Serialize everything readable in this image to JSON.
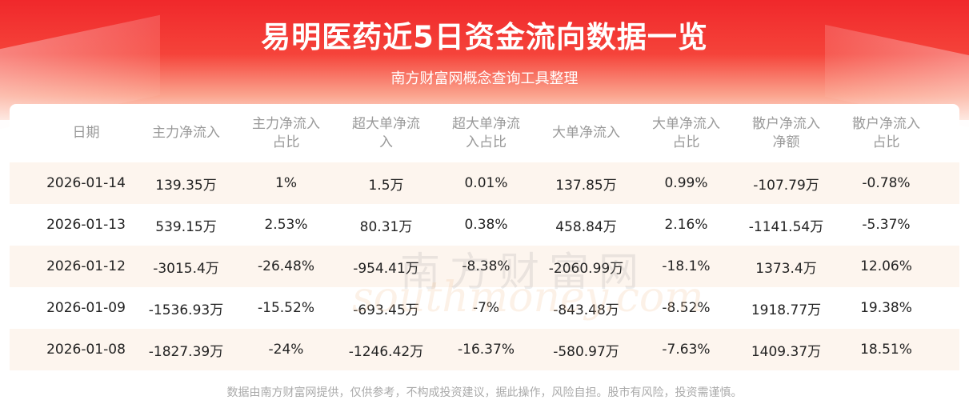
{
  "header": {
    "title": "易明医药近5日资金流向数据一览",
    "subtitle": "南方财富网概念查询工具整理"
  },
  "table": {
    "columns": [
      "日期",
      "主力净流入",
      "主力净流入\n占比",
      "超大单净流\n入",
      "超大单净流\n入占比",
      "大单净流入",
      "大单净流入\n占比",
      "散户净流入\n净额",
      "散户净流入\n占比"
    ],
    "rows": [
      [
        "2026-01-14",
        "139.35万",
        "1%",
        "1.5万",
        "0.01%",
        "137.85万",
        "0.99%",
        "-107.79万",
        "-0.78%"
      ],
      [
        "2026-01-13",
        "539.15万",
        "2.53%",
        "80.31万",
        "0.38%",
        "458.84万",
        "2.16%",
        "-1141.54万",
        "-5.37%"
      ],
      [
        "2026-01-12",
        "-3015.4万",
        "-26.48%",
        "-954.41万",
        "-8.38%",
        "-2060.99万",
        "-18.1%",
        "1373.4万",
        "12.06%"
      ],
      [
        "2026-01-09",
        "-1536.93万",
        "-15.52%",
        "-693.45万",
        "-7%",
        "-843.48万",
        "-8.52%",
        "1918.77万",
        "19.38%"
      ],
      [
        "2026-01-08",
        "-1827.39万",
        "-24%",
        "-1246.42万",
        "-16.37%",
        "-580.97万",
        "-7.63%",
        "1409.37万",
        "18.51%"
      ]
    ]
  },
  "watermark": {
    "cn": "南方财富网",
    "en": "southmoney.com"
  },
  "footer": "数据由南方财富网提供，仅供参考，不构成投资建议，据此操作，风险自担。股市有风险，投资需谨慎。",
  "colors": {
    "header_red": "#f0282b",
    "stripe": "#fdf5ee",
    "header_text": "#999999"
  }
}
